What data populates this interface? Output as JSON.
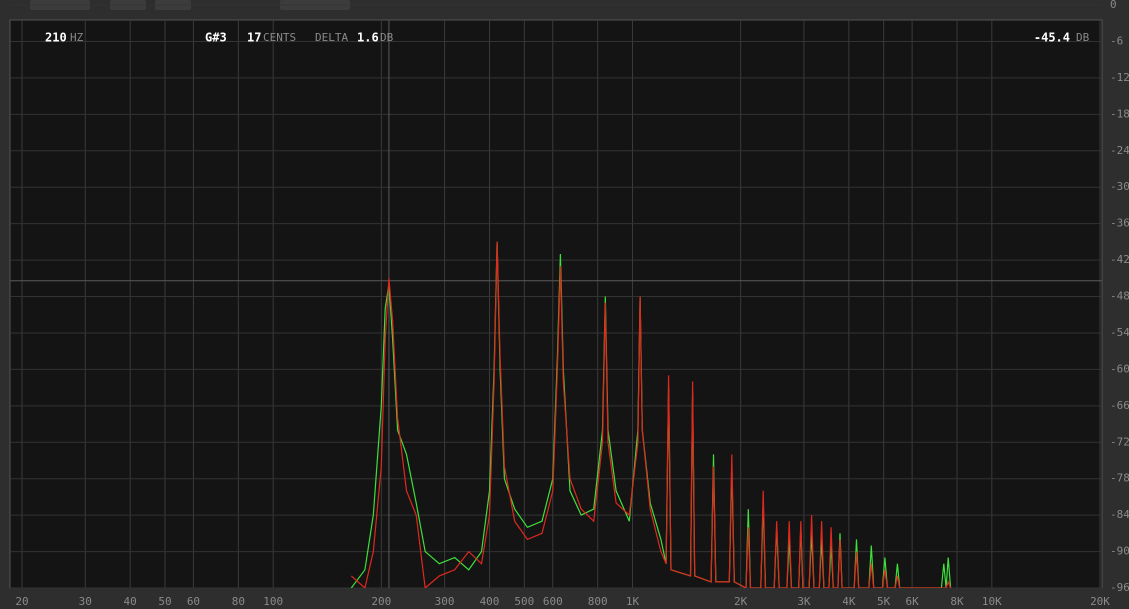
{
  "readout": {
    "freq": 210,
    "freq_unit": "HZ",
    "note": "G#3",
    "cents": 17,
    "cents_unit": "CENTS",
    "delta_label": "DELTA",
    "delta": 1.6,
    "delta_unit": "DB",
    "level": -45.4,
    "level_unit": "DB"
  },
  "chart_data": {
    "type": "line",
    "log_x": true,
    "grid": true,
    "xlim": [
      20,
      20000
    ],
    "ylim": [
      -96,
      0
    ],
    "xticks": [
      20,
      30,
      40,
      50,
      60,
      80,
      100,
      200,
      300,
      400,
      500,
      600,
      800,
      {
        "value": 1000,
        "label": "1K"
      },
      {
        "value": 2000,
        "label": "2K"
      },
      {
        "value": 3000,
        "label": "3K"
      },
      {
        "value": 4000,
        "label": "4K"
      },
      {
        "value": 5000,
        "label": "5K"
      },
      {
        "value": 6000,
        "label": "6K"
      },
      {
        "value": 8000,
        "label": "8K"
      },
      {
        "value": 10000,
        "label": "10K"
      },
      {
        "value": 20000,
        "label": "20K"
      }
    ],
    "yticks": [
      0,
      -6,
      -12,
      -18,
      -24,
      -30,
      -36,
      -42,
      -48,
      -54,
      -60,
      -66,
      -72,
      -78,
      -84,
      -90,
      -96
    ],
    "x": [
      165,
      180,
      190,
      200,
      205,
      210,
      215,
      222,
      235,
      250,
      265,
      290,
      320,
      350,
      380,
      400,
      412,
      420,
      428,
      440,
      470,
      510,
      560,
      600,
      618,
      630,
      642,
      670,
      720,
      780,
      825,
      840,
      855,
      900,
      980,
      1035,
      1050,
      1065,
      1120,
      1200,
      1240,
      1260,
      1280,
      1450,
      1470,
      1490,
      1655,
      1680,
      1705,
      1860,
      1890,
      1920,
      2070,
      2100,
      2130,
      2275,
      2310,
      2345,
      2480,
      2520,
      2560,
      2690,
      2730,
      2770,
      2900,
      2940,
      2980,
      3100,
      3150,
      3200,
      3310,
      3360,
      3410,
      3520,
      3570,
      3620,
      3730,
      3780,
      3830,
      4140,
      4200,
      4260,
      4550,
      4620,
      4690,
      4960,
      5040,
      5120,
      5380,
      5460,
      5540,
      7240,
      7350,
      7460,
      7560,
      7680
    ],
    "series": [
      {
        "name": "green",
        "color": "#3ee03a",
        "values": [
          -96,
          -93,
          -84,
          -66,
          -50,
          -46,
          -55,
          -70,
          -74,
          -82,
          -90,
          -92,
          -91,
          -93,
          -90,
          -80,
          -60,
          -39,
          -60,
          -78,
          -83,
          -86,
          -85,
          -78,
          -58,
          -41,
          -60,
          -80,
          -84,
          -83,
          -70,
          -48,
          -70,
          -80,
          -85,
          -70,
          -48,
          -70,
          -82,
          -88,
          -92,
          -63,
          -93,
          -94,
          -64,
          -94,
          -95,
          -74,
          -95,
          -95,
          -76,
          -95,
          -96,
          -83,
          -96,
          -96,
          -82,
          -96,
          -96,
          -86,
          -96,
          -96,
          -88,
          -96,
          -96,
          -86,
          -96,
          -96,
          -87,
          -96,
          -96,
          -88,
          -96,
          -96,
          -89,
          -96,
          -96,
          -87,
          -96,
          -96,
          -88,
          -96,
          -96,
          -89,
          -96,
          -96,
          -91,
          -96,
          -96,
          -92,
          -96,
          -96,
          -92,
          -96,
          -91,
          -96
        ]
      },
      {
        "name": "red",
        "color": "#e0281e",
        "values": [
          -94,
          -96,
          -90,
          -76,
          -55,
          -45,
          -52,
          -68,
          -80,
          -84,
          -96,
          -94,
          -93,
          -90,
          -92,
          -84,
          -62,
          -39,
          -58,
          -76,
          -85,
          -88,
          -87,
          -80,
          -60,
          -43,
          -62,
          -78,
          -83,
          -85,
          -72,
          -49,
          -72,
          -82,
          -84,
          -72,
          -48,
          -70,
          -83,
          -90,
          -92,
          -61,
          -93,
          -94,
          -62,
          -94,
          -95,
          -76,
          -95,
          -95,
          -74,
          -95,
          -96,
          -86,
          -96,
          -96,
          -80,
          -96,
          -96,
          -85,
          -96,
          -96,
          -85,
          -96,
          -96,
          -85,
          -96,
          -96,
          -84,
          -96,
          -96,
          -85,
          -96,
          -96,
          -86,
          -96,
          -96,
          -88,
          -96,
          -96,
          -90,
          -96,
          -96,
          -92,
          -96,
          -96,
          -93,
          -96,
          -96,
          -94,
          -96,
          -96,
          -96,
          -96,
          -95,
          -96
        ]
      }
    ]
  }
}
